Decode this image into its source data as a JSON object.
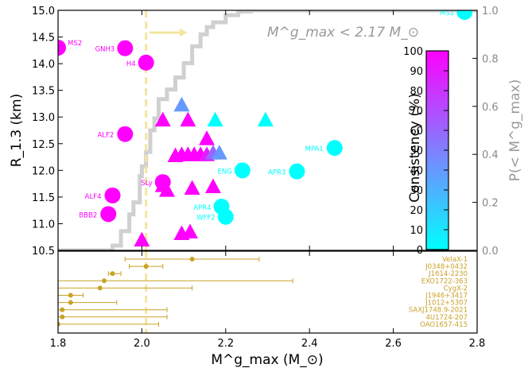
{
  "chart_data": {
    "type": "scatter",
    "xlabel": "M^g_max (M_⊙)",
    "ylabel": "R_1.3 (km)",
    "right_ylabel": "P(< M^g_max)",
    "colorbar_label": "Consistency (%)",
    "annotation": "M^g_max < 2.17 M_⊙",
    "xlim": [
      1.8,
      2.8
    ],
    "ylim": [
      10.5,
      15.0
    ],
    "xticks": [
      "1.8",
      "2.0",
      "2.2",
      "2.4",
      "2.6",
      "2.8"
    ],
    "yticks": [
      "10.5",
      "11.0",
      "11.5",
      "12.0",
      "12.5",
      "13.0",
      "13.5",
      "14.0",
      "14.5",
      "15.0"
    ],
    "right_yticks": [
      "0.0",
      "0.2",
      "0.4",
      "0.6",
      "0.8",
      "1.0"
    ],
    "colorbar_ticks": [
      "0",
      "10",
      "20",
      "30",
      "40",
      "50",
      "60",
      "70",
      "80",
      "90",
      "100"
    ],
    "vline_x": 2.01,
    "cdf": {
      "name": "P(< M^g_max)",
      "color": "#d0d0d0",
      "points": [
        [
          1.8,
          0.0
        ],
        [
          1.9,
          0.0
        ],
        [
          1.93,
          0.02
        ],
        [
          1.95,
          0.08
        ],
        [
          1.97,
          0.15
        ],
        [
          1.98,
          0.2
        ],
        [
          1.995,
          0.31
        ],
        [
          2.0,
          0.35
        ],
        [
          2.01,
          0.41
        ],
        [
          2.02,
          0.5
        ],
        [
          2.03,
          0.55
        ],
        [
          2.04,
          0.63
        ],
        [
          2.06,
          0.67
        ],
        [
          2.08,
          0.72
        ],
        [
          2.1,
          0.78
        ],
        [
          2.12,
          0.85
        ],
        [
          2.14,
          0.9
        ],
        [
          2.155,
          0.93
        ],
        [
          2.17,
          0.95
        ],
        [
          2.2,
          0.98
        ],
        [
          2.23,
          0.995
        ],
        [
          2.26,
          1.0
        ],
        [
          2.8,
          1.0
        ]
      ]
    },
    "eos_circles": [
      {
        "name": "MS2",
        "x": 1.8,
        "y": 14.3,
        "consistency": 100
      },
      {
        "name": "GNH3",
        "x": 1.96,
        "y": 14.29,
        "consistency": 100
      },
      {
        "name": "H4",
        "x": 2.01,
        "y": 14.02,
        "consistency": 100
      },
      {
        "name": "ALF2",
        "x": 1.96,
        "y": 12.68,
        "consistency": 100
      },
      {
        "name": "SLy",
        "x": 2.05,
        "y": 11.78,
        "consistency": 100
      },
      {
        "name": "ALF4",
        "x": 1.93,
        "y": 11.53,
        "consistency": 100
      },
      {
        "name": "BBB2",
        "x": 1.92,
        "y": 11.18,
        "consistency": 100
      },
      {
        "name": "MS1",
        "x": 2.77,
        "y": 14.97,
        "consistency": 0
      },
      {
        "name": "MPA1",
        "x": 2.46,
        "y": 12.42,
        "consistency": 0
      },
      {
        "name": "ENG",
        "x": 2.24,
        "y": 12.0,
        "consistency": 0
      },
      {
        "name": "APR3",
        "x": 2.37,
        "y": 11.98,
        "consistency": 0
      },
      {
        "name": "APR4",
        "x": 2.19,
        "y": 11.32,
        "consistency": 0
      },
      {
        "name": "WFF2",
        "x": 2.2,
        "y": 11.13,
        "consistency": 0
      }
    ],
    "eos_triangles": [
      {
        "x": 2.0,
        "y": 10.7,
        "consistency": 100
      },
      {
        "x": 2.05,
        "y": 12.95,
        "consistency": 100
      },
      {
        "x": 2.11,
        "y": 12.95,
        "consistency": 100
      },
      {
        "x": 2.095,
        "y": 13.23,
        "consistency": 40
      },
      {
        "x": 2.175,
        "y": 12.95,
        "consistency": 0
      },
      {
        "x": 2.295,
        "y": 12.95,
        "consistency": 0
      },
      {
        "x": 2.155,
        "y": 12.6,
        "consistency": 100
      },
      {
        "x": 2.08,
        "y": 12.28,
        "consistency": 100
      },
      {
        "x": 2.095,
        "y": 12.3,
        "consistency": 100
      },
      {
        "x": 2.11,
        "y": 12.3,
        "consistency": 100
      },
      {
        "x": 2.125,
        "y": 12.3,
        "consistency": 100
      },
      {
        "x": 2.14,
        "y": 12.3,
        "consistency": 100
      },
      {
        "x": 2.155,
        "y": 12.3,
        "consistency": 90
      },
      {
        "x": 2.17,
        "y": 12.33,
        "consistency": 60
      },
      {
        "x": 2.185,
        "y": 12.33,
        "consistency": 40
      },
      {
        "x": 2.05,
        "y": 11.72,
        "consistency": 100
      },
      {
        "x": 2.06,
        "y": 11.63,
        "consistency": 100
      },
      {
        "x": 2.12,
        "y": 11.67,
        "consistency": 100
      },
      {
        "x": 2.17,
        "y": 11.7,
        "consistency": 100
      },
      {
        "x": 2.095,
        "y": 10.82,
        "consistency": 100
      },
      {
        "x": 2.115,
        "y": 10.85,
        "consistency": 100
      }
    ],
    "observations": [
      {
        "name": "VelaX-1",
        "mean": 2.12,
        "low": 1.96,
        "high": 2.28
      },
      {
        "name": "J0348+0432",
        "mean": 2.01,
        "low": 1.97,
        "high": 2.05
      },
      {
        "name": "J1614-2230",
        "mean": 1.93,
        "low": 1.92,
        "high": 1.95
      },
      {
        "name": "EXO1722-363",
        "mean": 1.91,
        "low": 1.8,
        "high": 2.36
      },
      {
        "name": "CygX-2",
        "mean": 1.9,
        "low": 1.8,
        "high": 2.12
      },
      {
        "name": "J1946+3417",
        "mean": 1.83,
        "low": 1.8,
        "high": 1.86
      },
      {
        "name": "J1012+5307",
        "mean": 1.83,
        "low": 1.8,
        "high": 1.94
      },
      {
        "name": "SAXJ1748.9-2021",
        "mean": 1.81,
        "low": 1.8,
        "high": 2.06
      },
      {
        "name": "4U1724-207",
        "mean": 1.81,
        "low": 1.8,
        "high": 2.06
      },
      {
        "name": "OAO1657-415",
        "mean": 1.8,
        "low": 1.8,
        "high": 2.04
      }
    ],
    "colors": {
      "low": "#00ffff",
      "high": "#ff00ff",
      "cdf": "#d0d0d0",
      "vline": "#f2e6a0",
      "observations": "#c9a227",
      "arrow": "#f2e6a0"
    }
  }
}
